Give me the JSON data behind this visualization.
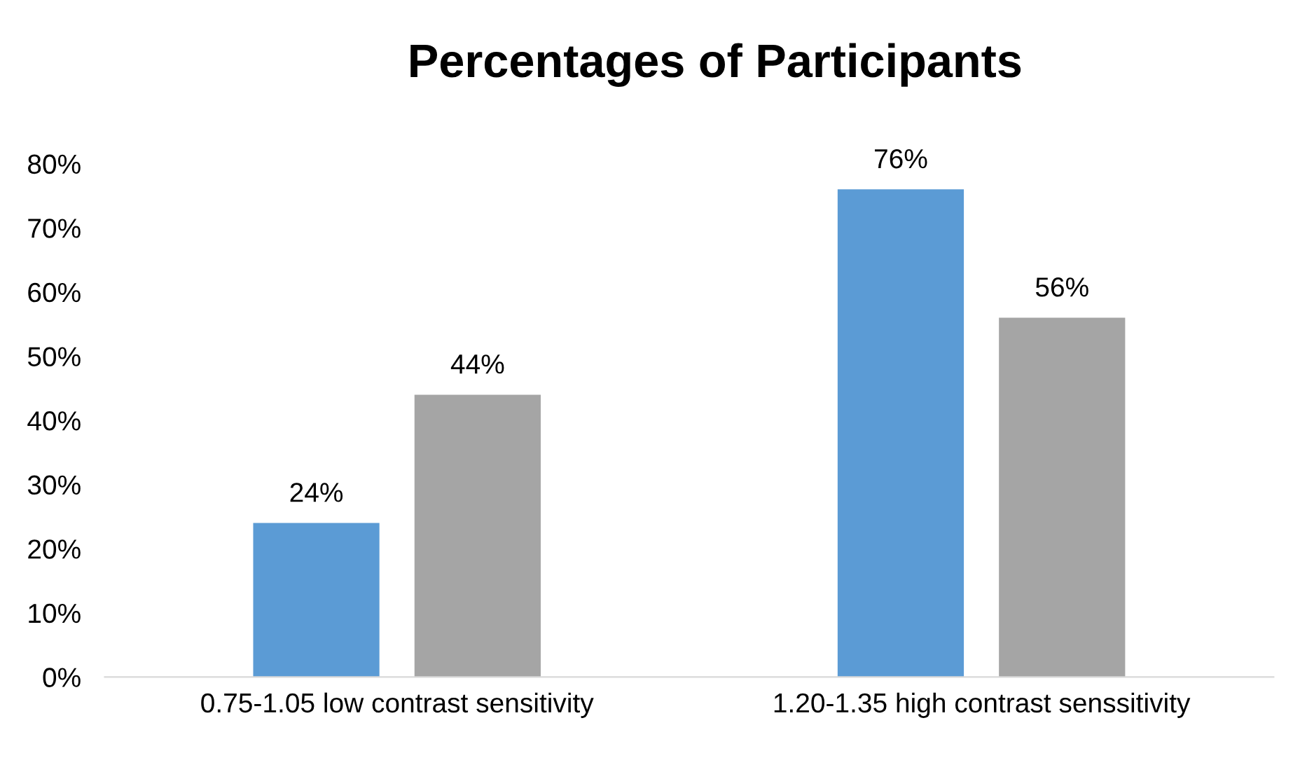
{
  "chart_data": {
    "type": "bar",
    "title": "Percentages of Participants",
    "categories": [
      "0.75-1.05 low contrast sensitivity",
      "1.20-1.35 high contrast senssitivity"
    ],
    "series": [
      {
        "color": "#5b9bd5",
        "values": [
          24,
          76
        ],
        "value_labels": [
          "24%",
          "76%"
        ]
      },
      {
        "color": "#a5a5a5",
        "values": [
          44,
          56
        ],
        "value_labels": [
          "44%",
          "56%"
        ]
      }
    ],
    "ylim": [
      0,
      80
    ],
    "yticks": [
      {
        "value": 0,
        "label": "0%"
      },
      {
        "value": 10,
        "label": "10%"
      },
      {
        "value": 20,
        "label": "20%"
      },
      {
        "value": 30,
        "label": "30%"
      },
      {
        "value": 40,
        "label": "40%"
      },
      {
        "value": 50,
        "label": "50%"
      },
      {
        "value": 60,
        "label": "60%"
      },
      {
        "value": 70,
        "label": "70%"
      },
      {
        "value": 80,
        "label": "80%"
      }
    ],
    "grid": false,
    "legend": false
  }
}
